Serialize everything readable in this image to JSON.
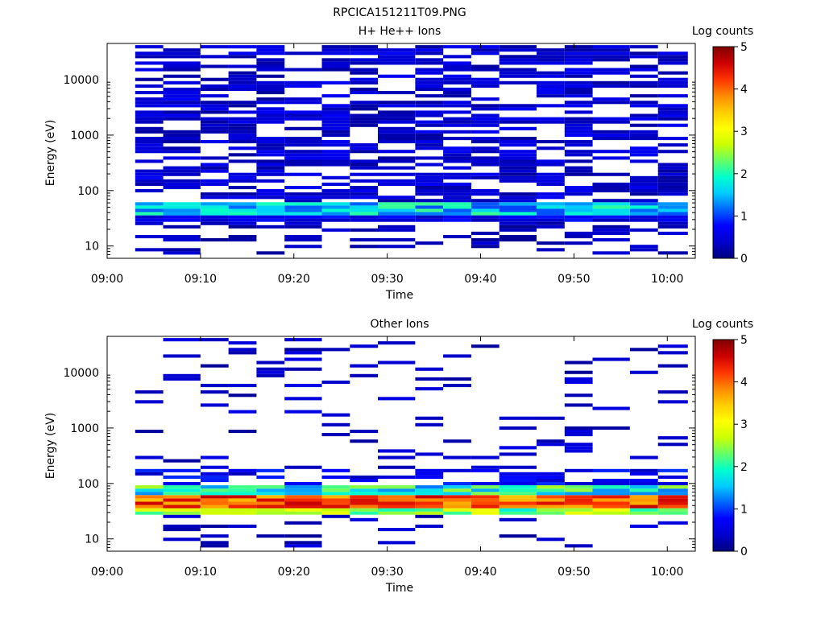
{
  "figure_title": "RPCICA151211T09.PNG",
  "palette_stops": [
    "#000080",
    "#0000cc",
    "#0000ff",
    "#0066ff",
    "#00ccff",
    "#00ffcc",
    "#66ff66",
    "#ccff00",
    "#ffff00",
    "#ffcc00",
    "#ff8800",
    "#ff3300",
    "#cc0000",
    "#800000"
  ],
  "chart_data": [
    {
      "type": "heatmap",
      "title": "H+ He++ Ions",
      "xlabel": "Time",
      "ylabel": "Energy (eV)",
      "yscale": "log",
      "xlim": [
        "09:00",
        "10:03"
      ],
      "ylim": [
        6,
        45000
      ],
      "x_ticks": [
        "09:00",
        "09:10",
        "09:20",
        "09:30",
        "09:40",
        "09:50",
        "10:00"
      ],
      "y_ticks": [
        "10",
        "100",
        "1000",
        "10000"
      ],
      "time_bins": [
        "09:03",
        "09:06",
        "09:10",
        "09:13",
        "09:16",
        "09:19",
        "09:23",
        "09:26",
        "09:29",
        "09:33",
        "09:36",
        "09:39",
        "09:42",
        "09:46",
        "09:49",
        "09:52",
        "09:56",
        "09:59"
      ],
      "colorbar": {
        "label": "Log counts",
        "range": [
          0,
          5
        ],
        "ticks": [
          "0",
          "1",
          "2",
          "3",
          "4",
          "5"
        ]
      },
      "values_description": "Log counts per energy bin; mostly 0.1-0.7 above 100 eV with gaps, band of 1.0-2.2 near 40-55 eV"
    },
    {
      "type": "heatmap",
      "title": "Other Ions",
      "xlabel": "Time",
      "ylabel": "Energy (eV)",
      "yscale": "log",
      "xlim": [
        "09:00",
        "10:03"
      ],
      "ylim": [
        6,
        45000
      ],
      "x_ticks": [
        "09:00",
        "09:10",
        "09:20",
        "09:30",
        "09:40",
        "09:50",
        "10:00"
      ],
      "y_ticks": [
        "10",
        "100",
        "1000",
        "10000"
      ],
      "time_bins": [
        "09:03",
        "09:06",
        "09:10",
        "09:13",
        "09:16",
        "09:19",
        "09:23",
        "09:26",
        "09:29",
        "09:33",
        "09:36",
        "09:39",
        "09:42",
        "09:46",
        "09:49",
        "09:52",
        "09:56",
        "09:59"
      ],
      "colorbar": {
        "label": "Log counts",
        "range": [
          0,
          5
        ],
        "ticks": [
          "0",
          "1",
          "2",
          "3",
          "4",
          "5"
        ]
      },
      "values_description": "Sparse low counts above 150 eV; intense band 3.5-4.7 near 35-60 eV with cyan/green edges"
    }
  ]
}
